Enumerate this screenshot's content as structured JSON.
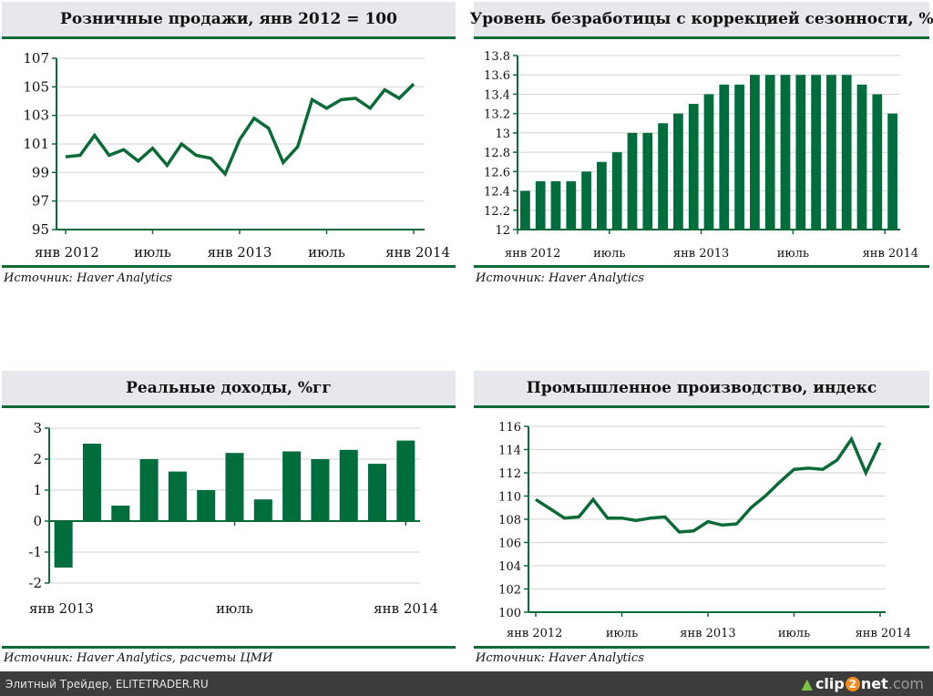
{
  "chart_data": [
    {
      "id": "retail",
      "type": "line",
      "title": "Розничные продажи, янв 2012 = 100",
      "source": "Источник: Haver Analytics",
      "xlabel": "",
      "ylabel": "",
      "ylim": [
        95,
        107
      ],
      "yticks": [
        "95",
        "97",
        "99",
        "101",
        "103",
        "105",
        "107"
      ],
      "ytick_values": [
        95,
        97,
        99,
        101,
        103,
        105,
        107
      ],
      "xtick_labels": [
        "янв 2012",
        "июль",
        "янв 2013",
        "июль",
        "янв 2014"
      ],
      "xtick_index": [
        0,
        6,
        12,
        18,
        24
      ],
      "grid": true,
      "color": "#0a6b36",
      "x": [
        "2012-01",
        "2012-02",
        "2012-03",
        "2012-04",
        "2012-05",
        "2012-06",
        "2012-07",
        "2012-08",
        "2012-09",
        "2012-10",
        "2012-11",
        "2012-12",
        "2013-01",
        "2013-02",
        "2013-03",
        "2013-04",
        "2013-05",
        "2013-06",
        "2013-07",
        "2013-08",
        "2013-09",
        "2013-10",
        "2013-11",
        "2013-12",
        "2014-01"
      ],
      "values": [
        100.1,
        100.2,
        101.6,
        100.2,
        100.6,
        99.8,
        100.7,
        99.5,
        101.0,
        100.2,
        100.0,
        98.9,
        101.3,
        102.8,
        102.1,
        99.7,
        100.8,
        104.1,
        103.5,
        104.1,
        104.2,
        103.5,
        104.8,
        104.2,
        105.2
      ]
    },
    {
      "id": "unemployment",
      "type": "bar",
      "title": "Уровень безработицы с коррекцией сезонности, %",
      "source": "Источник: Haver Analytics",
      "xlabel": "",
      "ylabel": "",
      "ylim": [
        12,
        13.8
      ],
      "yticks": [
        "12",
        "12.2",
        "12.4",
        "12.6",
        "12.8",
        "13",
        "13.2",
        "13.4",
        "13.6",
        "13.8"
      ],
      "ytick_values": [
        12,
        12.2,
        12.4,
        12.6,
        12.8,
        13,
        13.2,
        13.4,
        13.6,
        13.8
      ],
      "xtick_labels": [
        "янв 2012",
        "июль",
        "янв 2013",
        "июль",
        "янв 2014"
      ],
      "xtick_index": [
        0,
        6,
        12,
        18,
        24
      ],
      "grid": true,
      "color": "#006e3c",
      "x": [
        "2012-01",
        "2012-02",
        "2012-03",
        "2012-04",
        "2012-05",
        "2012-06",
        "2012-07",
        "2012-08",
        "2012-09",
        "2012-10",
        "2012-11",
        "2012-12",
        "2013-01",
        "2013-02",
        "2013-03",
        "2013-04",
        "2013-05",
        "2013-06",
        "2013-07",
        "2013-08",
        "2013-09",
        "2013-10",
        "2013-11",
        "2013-12",
        "2014-01"
      ],
      "values": [
        12.4,
        12.5,
        12.5,
        12.5,
        12.6,
        12.7,
        12.8,
        13.0,
        13.0,
        13.1,
        13.2,
        13.3,
        13.4,
        13.5,
        13.5,
        13.6,
        13.6,
        13.6,
        13.6,
        13.6,
        13.6,
        13.6,
        13.5,
        13.4,
        13.2
      ]
    },
    {
      "id": "real_income",
      "type": "bar",
      "title": "Реальные доходы, %гг",
      "source": "Источник: Haver Analytics, расчеты ЦМИ",
      "xlabel": "",
      "ylabel": "",
      "ylim": [
        -2,
        3
      ],
      "yticks": [
        "-2",
        "-1",
        "0",
        "1",
        "2",
        "3"
      ],
      "ytick_values": [
        -2,
        -1,
        0,
        1,
        2,
        3
      ],
      "xtick_labels": [
        "янв 2013",
        "июль",
        "янв 2014"
      ],
      "xtick_index": [
        0,
        6,
        12
      ],
      "grid": true,
      "color": "#006e3c",
      "x": [
        "2013-01",
        "2013-02",
        "2013-03",
        "2013-04",
        "2013-05",
        "2013-06",
        "2013-07",
        "2013-08",
        "2013-09",
        "2013-10",
        "2013-11",
        "2013-12",
        "2014-01"
      ],
      "values": [
        -1.5,
        2.5,
        0.5,
        2.0,
        1.6,
        1.0,
        2.2,
        0.7,
        2.25,
        2.0,
        2.3,
        1.85,
        2.6
      ]
    },
    {
      "id": "industrial",
      "type": "line",
      "title": "Промышленное производство, индекс",
      "source": "Источник: Haver Analytics",
      "xlabel": "",
      "ylabel": "",
      "ylim": [
        100,
        116
      ],
      "yticks": [
        "100",
        "102",
        "104",
        "106",
        "108",
        "110",
        "112",
        "114",
        "116"
      ],
      "ytick_values": [
        100,
        102,
        104,
        106,
        108,
        110,
        112,
        114,
        116
      ],
      "xtick_labels": [
        "янв 2012",
        "июль",
        "янв 2013",
        "июль",
        "янв 2014"
      ],
      "xtick_index": [
        0,
        6,
        12,
        18,
        24
      ],
      "grid": true,
      "color": "#0a6b36",
      "x": [
        "2012-01",
        "2012-02",
        "2012-03",
        "2012-04",
        "2012-05",
        "2012-06",
        "2012-07",
        "2012-08",
        "2012-09",
        "2012-10",
        "2012-11",
        "2012-12",
        "2013-01",
        "2013-02",
        "2013-03",
        "2013-04",
        "2013-05",
        "2013-06",
        "2013-07",
        "2013-08",
        "2013-09",
        "2013-10",
        "2013-11",
        "2013-12",
        "2014-01"
      ],
      "values": [
        109.7,
        108.9,
        108.1,
        108.2,
        109.7,
        108.1,
        108.1,
        107.9,
        108.1,
        108.2,
        106.9,
        107.0,
        107.8,
        107.5,
        107.6,
        109.0,
        110.0,
        111.2,
        112.3,
        112.4,
        112.3,
        113.1,
        114.9,
        112.0,
        114.6
      ]
    }
  ],
  "footer": {
    "credit": "Элитный Трейдер, ELITETRADER.RU",
    "brand_prefix": "clip",
    "brand_digit": "2",
    "brand_name": "net",
    "brand_suffix": ".com",
    "brand_icon": "upload-arrow-icon"
  }
}
